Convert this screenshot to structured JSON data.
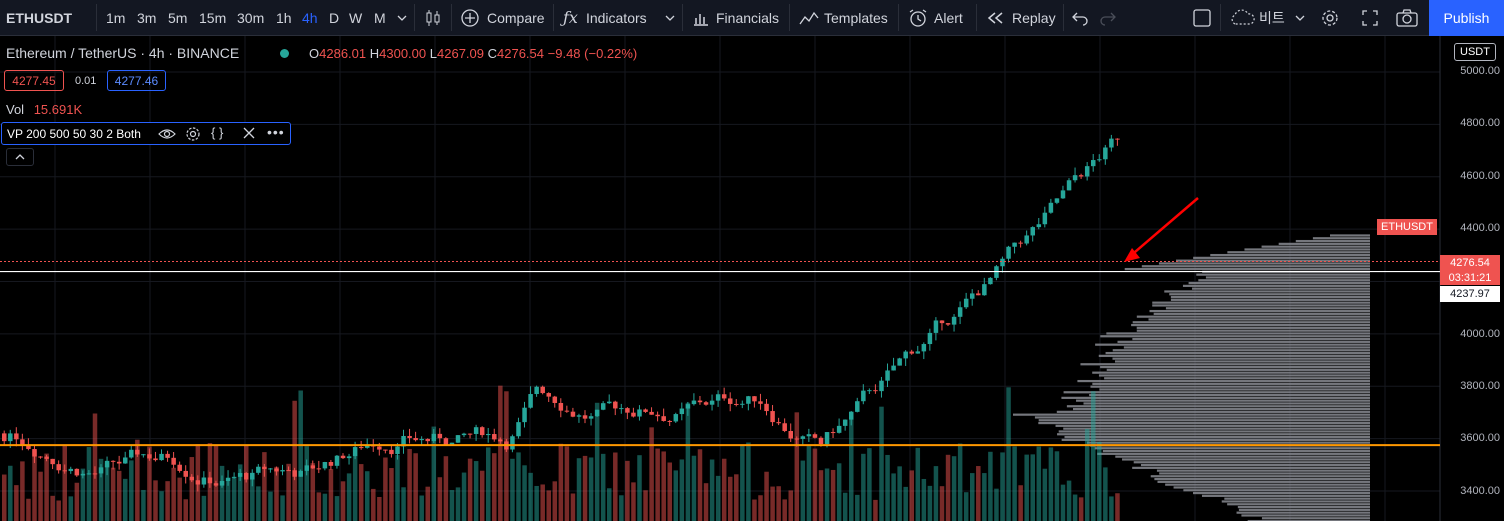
{
  "toolbar": {
    "symbol": "ETHUSDT",
    "timeframes": [
      "1m",
      "3m",
      "5m",
      "15m",
      "30m",
      "1h",
      "4h",
      "D",
      "W",
      "M"
    ],
    "active_timeframe": "4h",
    "compare": "Compare",
    "indicators": "Indicators",
    "financials": "Financials",
    "templates": "Templates",
    "alert": "Alert",
    "replay": "Replay",
    "layout_name": "비트",
    "publish": "Publish"
  },
  "legend": {
    "title": "Ethereum / TetherUS · 4h · BINANCE",
    "o_label": "O",
    "o_value": "4286.01",
    "h_label": "H",
    "h_value": "4300.00",
    "l_label": "L",
    "l_value": "4267.09",
    "c_label": "C",
    "c_value": "4276.54",
    "change": "−9.48 (−0.22%)",
    "sell_price": "4277.45",
    "spread": "0.01",
    "buy_price": "4277.46",
    "vol_label": "Vol",
    "vol_value": "15.691K",
    "vp_label": "VP 200 500 50 30 2 Both"
  },
  "price_axis": {
    "currency": "USDT",
    "labels": [
      "5000.00",
      "4800.00",
      "4600.00",
      "4400.00",
      "4000.00",
      "3800.00",
      "3600.00",
      "3400.00"
    ],
    "last_symbol": "ETHUSDT",
    "last_price": "4276.54",
    "countdown": "03:31:21",
    "crosshair_price": "4237.97"
  },
  "colors": {
    "up": "#26a69a",
    "down": "#ef5350",
    "accent": "#2962ff",
    "support_line": "#ff9800",
    "arrow": "#ff0000",
    "volume_profile": "#8a8c93"
  }
}
